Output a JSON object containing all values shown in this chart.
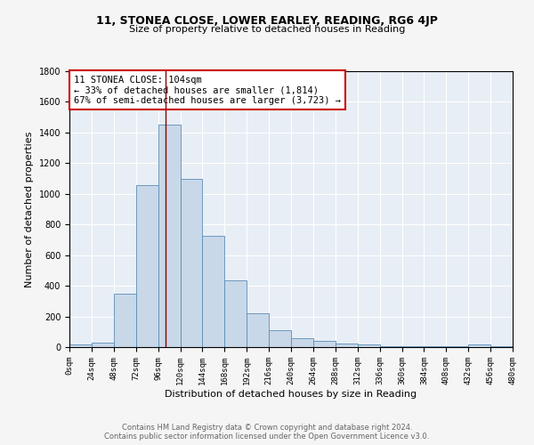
{
  "title1": "11, STONEA CLOSE, LOWER EARLEY, READING, RG6 4JP",
  "title2": "Size of property relative to detached houses in Reading",
  "xlabel": "Distribution of detached houses by size in Reading",
  "ylabel": "Number of detached properties",
  "bin_edges": [
    0,
    24,
    48,
    72,
    96,
    120,
    144,
    168,
    192,
    216,
    240,
    264,
    288,
    312,
    336,
    360,
    384,
    408,
    432,
    456,
    480
  ],
  "bar_heights": [
    15,
    30,
    350,
    1055,
    1450,
    1095,
    725,
    435,
    220,
    110,
    60,
    40,
    25,
    20,
    5,
    5,
    5,
    5,
    15,
    5
  ],
  "bar_color": "#c8d8e8",
  "bar_edge_color": "#5b8db8",
  "background_color": "#e8eef5",
  "grid_color": "#ffffff",
  "vline_x": 104,
  "vline_color": "#8b0000",
  "annotation_text": "11 STONEA CLOSE: 104sqm\n← 33% of detached houses are smaller (1,814)\n67% of semi-detached houses are larger (3,723) →",
  "annotation_box_color": "#ffffff",
  "annotation_box_edge": "#cc0000",
  "footer1": "Contains HM Land Registry data © Crown copyright and database right 2024.",
  "footer2": "Contains public sector information licensed under the Open Government Licence v3.0.",
  "ylim": [
    0,
    1800
  ],
  "tick_labels": [
    "0sqm",
    "24sqm",
    "48sqm",
    "72sqm",
    "96sqm",
    "120sqm",
    "144sqm",
    "168sqm",
    "192sqm",
    "216sqm",
    "240sqm",
    "264sqm",
    "288sqm",
    "312sqm",
    "336sqm",
    "360sqm",
    "384sqm",
    "408sqm",
    "432sqm",
    "456sqm",
    "480sqm"
  ],
  "fig_width": 6.0,
  "fig_height": 5.0,
  "dpi": 100
}
